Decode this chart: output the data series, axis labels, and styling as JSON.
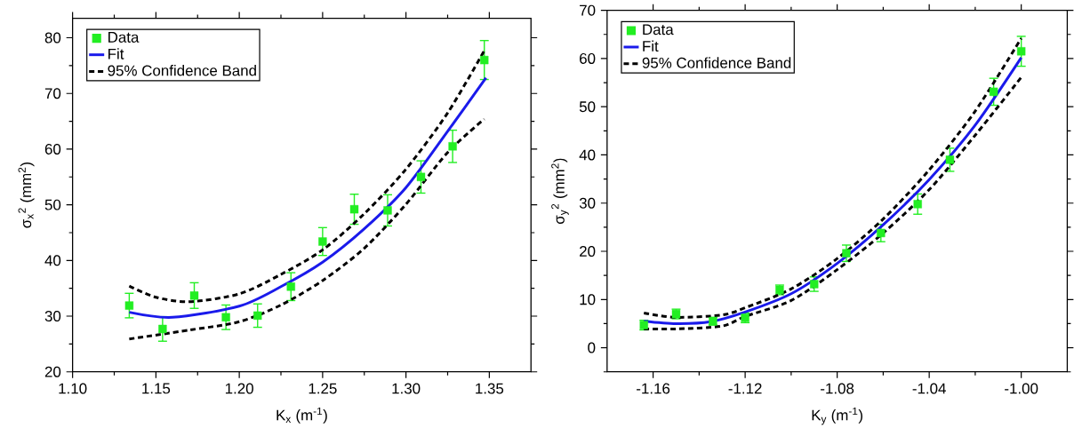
{
  "chart_data": [
    {
      "type": "scatter",
      "xlabel": "K$_{x}$ (m$^{-1}$)",
      "ylabel": "σ$_{x}$$^{2}$ (mm$^{2}$)",
      "xlim": [
        1.1,
        1.375
      ],
      "ylim": [
        20,
        83.5
      ],
      "xticks": [
        {
          "value": 1.1,
          "label": "1.10"
        },
        {
          "value": 1.125,
          "label": null
        },
        {
          "value": 1.15,
          "label": "1.15"
        },
        {
          "value": 1.175,
          "label": null
        },
        {
          "value": 1.2,
          "label": "1.20"
        },
        {
          "value": 1.225,
          "label": null
        },
        {
          "value": 1.25,
          "label": "1.25"
        },
        {
          "value": 1.275,
          "label": null
        },
        {
          "value": 1.3,
          "label": "1.30"
        },
        {
          "value": 1.325,
          "label": null
        },
        {
          "value": 1.35,
          "label": "1.35"
        }
      ],
      "yticks": [
        20,
        {
          "value": 25,
          "label": null
        },
        30,
        {
          "value": 35,
          "label": null
        },
        40,
        {
          "value": 45,
          "label": null
        },
        50,
        {
          "value": 55,
          "label": null
        },
        60,
        {
          "value": 65,
          "label": null
        },
        70,
        {
          "value": 75,
          "label": null
        },
        80
      ],
      "grid": false,
      "legend": "top left",
      "series": [
        {
          "name": "Data",
          "marker": "square",
          "color": "#22ee22",
          "x": [
            1.134,
            1.154,
            1.173,
            1.192,
            1.211,
            1.231,
            1.25,
            1.269,
            1.289,
            1.309,
            1.328,
            1.347
          ],
          "values": [
            31.9,
            27.7,
            33.7,
            29.8,
            30.1,
            35.3,
            43.4,
            49.2,
            49.0,
            55.0,
            60.5,
            76.0
          ],
          "errors": [
            2.2,
            2.2,
            2.3,
            2.2,
            2.1,
            2.5,
            2.5,
            2.7,
            2.8,
            2.9,
            2.9,
            3.5
          ]
        },
        {
          "name": "Fit",
          "type": "line",
          "line_style": "solid",
          "color": "#1a1aeb",
          "x": [
            1.134,
            1.16,
            1.2,
            1.225,
            1.25,
            1.275,
            1.3,
            1.325,
            1.348
          ],
          "values": [
            30.7,
            29.8,
            31.8,
            35.3,
            39.7,
            45.7,
            53.1,
            63.2,
            72.8
          ]
        },
        {
          "name": "95% Confidence Band",
          "type": "line",
          "line_style": "dashed",
          "color": "#000000",
          "x": [
            1.134,
            1.15,
            1.17,
            1.2,
            1.225,
            1.25,
            1.275,
            1.3,
            1.325,
            1.347
          ],
          "values": [
            35.4,
            33.4,
            32.6,
            34.0,
            37.5,
            41.9,
            48.4,
            56.4,
            66.5,
            77.7
          ]
        },
        {
          "type": "line",
          "line_style": "dashed",
          "color": "#000000",
          "x": [
            1.134,
            1.17,
            1.2,
            1.225,
            1.25,
            1.275,
            1.3,
            1.325,
            1.347
          ],
          "values": [
            25.9,
            27.5,
            29.0,
            32.0,
            36.4,
            42.2,
            50.1,
            59.4,
            65.4
          ]
        }
      ]
    },
    {
      "type": "scatter",
      "xlabel": "K$_{y}$ (m$^{-1}$)",
      "ylabel": "σ$_{y}$$^{2}$ (mm$^{2}$)",
      "xlim": [
        -1.18,
        -0.98
      ],
      "ylim": [
        -5,
        70
      ],
      "xticks": [
        {
          "value": -1.16,
          "label": "-1.16"
        },
        {
          "value": -1.14,
          "label": null
        },
        {
          "value": -1.12,
          "label": "-1.12"
        },
        {
          "value": -1.1,
          "label": null
        },
        {
          "value": -1.08,
          "label": "-1.08"
        },
        {
          "value": -1.06,
          "label": null
        },
        {
          "value": -1.04,
          "label": "-1.04"
        },
        {
          "value": -1.02,
          "label": null
        },
        {
          "value": -1.0,
          "label": "-1.00"
        }
      ],
      "yticks": [
        {
          "value": -5,
          "label": null
        },
        0,
        {
          "value": 5,
          "label": null
        },
        10,
        {
          "value": 15,
          "label": null
        },
        20,
        {
          "value": 25,
          "label": null
        },
        30,
        {
          "value": 35,
          "label": null
        },
        40,
        {
          "value": 45,
          "label": null
        },
        50,
        {
          "value": 55,
          "label": null
        },
        60,
        {
          "value": 65,
          "label": null
        },
        70
      ],
      "grid": false,
      "legend": "top left",
      "series": [
        {
          "name": "Data",
          "marker": "square",
          "color": "#22ee22",
          "x": [
            -1.164,
            -1.15,
            -1.134,
            -1.12,
            -1.105,
            -1.09,
            -1.076,
            -1.061,
            -1.045,
            -1.031,
            -1.012,
            -1.0
          ],
          "values": [
            4.7,
            7.0,
            5.5,
            6.2,
            12.0,
            13.2,
            19.6,
            23.8,
            29.8,
            39.0,
            53.1,
            61.5
          ],
          "errors": [
            1.0,
            1.0,
            0.8,
            1.0,
            1.0,
            1.5,
            1.7,
            1.8,
            2.1,
            2.4,
            2.8,
            3.1
          ]
        },
        {
          "name": "Fit",
          "type": "line",
          "line_style": "solid",
          "color": "#1a1aeb",
          "x": [
            -1.164,
            -1.15,
            -1.135,
            -1.12,
            -1.1,
            -1.08,
            -1.06,
            -1.04,
            -1.02,
            -1.0
          ],
          "values": [
            5.5,
            5.0,
            5.4,
            7.4,
            11.2,
            17.5,
            25.5,
            34.9,
            46.2,
            60.2
          ]
        },
        {
          "name": "95% Confidence Band",
          "type": "line",
          "line_style": "dashed",
          "color": "#000000",
          "x": [
            -1.164,
            -1.15,
            -1.13,
            -1.12,
            -1.1,
            -1.08,
            -1.06,
            -1.04,
            -1.02,
            -1.0
          ],
          "values": [
            7.2,
            6.3,
            6.8,
            8.3,
            12.2,
            18.5,
            26.7,
            36.9,
            49.1,
            64.2
          ]
        },
        {
          "type": "line",
          "line_style": "dashed",
          "color": "#000000",
          "x": [
            -1.164,
            -1.15,
            -1.13,
            -1.12,
            -1.1,
            -1.08,
            -1.06,
            -1.04,
            -1.02,
            -1.0
          ],
          "values": [
            3.9,
            3.9,
            4.5,
            6.5,
            9.8,
            16.2,
            23.8,
            32.8,
            44.1,
            56.1
          ]
        }
      ]
    }
  ]
}
